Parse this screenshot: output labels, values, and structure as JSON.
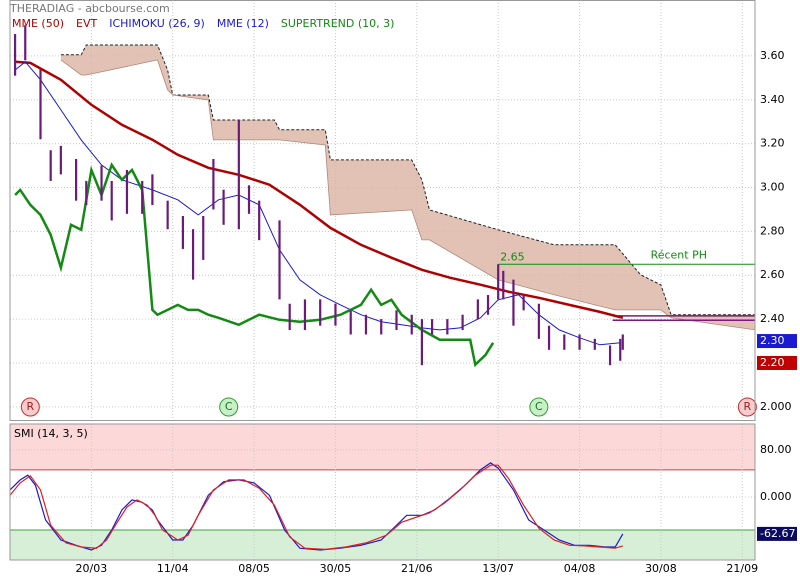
{
  "chart_data": {
    "type": "stock",
    "title": "THERADIAG - abcbourse.com",
    "xlim": [
      0,
      146.5
    ],
    "xticks": [
      {
        "value": 16,
        "label": "20/03"
      },
      {
        "value": 32,
        "label": "11/04"
      },
      {
        "value": 48,
        "label": "08/05"
      },
      {
        "value": 64,
        "label": "30/05"
      },
      {
        "value": 80,
        "label": "21/06"
      },
      {
        "value": 96,
        "label": "13/07"
      },
      {
        "value": 112,
        "label": "04/08"
      },
      {
        "value": 128,
        "label": "30/08"
      },
      {
        "value": 144,
        "label": "21/09"
      }
    ],
    "ylim": [
      1.94,
      3.855
    ],
    "yticks": [
      {
        "value": 3.6,
        "label": "3.60"
      },
      {
        "value": 3.4,
        "label": "3.40"
      },
      {
        "value": 3.2,
        "label": "3.20"
      },
      {
        "value": 3.0,
        "label": "3.00"
      },
      {
        "value": 2.8,
        "label": "2.80"
      },
      {
        "value": 2.6,
        "label": "2.60"
      },
      {
        "value": 2.4,
        "label": "2.40"
      },
      {
        "value": 2.2,
        "label": "2.20"
      },
      {
        "value": 2.0,
        "label": "2.000"
      }
    ],
    "grid": true,
    "legend": [
      "MME (50)",
      "EVT",
      "ICHIMOKU (26, 9)",
      "MME (12)",
      "SUPERTREND (10, 3)"
    ],
    "legend_colors": [
      "#b00000",
      "#b00000",
      "#1a1ad0",
      "#1a1ad0",
      "#138a13"
    ],
    "price": {
      "color": "#6a1b7a",
      "x": [
        1,
        3,
        6,
        8,
        10,
        13,
        15,
        18,
        20,
        23,
        26,
        28,
        31,
        34,
        36,
        38,
        40,
        42,
        45,
        47,
        49,
        53,
        55,
        58,
        61,
        64,
        67,
        70,
        73,
        76,
        79,
        81,
        83,
        86,
        89,
        92,
        94,
        96,
        97,
        99,
        101,
        104,
        106,
        109,
        112,
        115,
        118,
        120,
        120.5
      ],
      "high": [
        3.7,
        3.74,
        3.54,
        3.17,
        3.19,
        3.13,
        3.03,
        3.1,
        3.03,
        3.08,
        3.03,
        3.06,
        2.94,
        2.87,
        2.81,
        2.87,
        3.13,
        2.99,
        3.31,
        3.01,
        2.94,
        2.85,
        2.47,
        2.49,
        2.49,
        2.47,
        2.44,
        2.42,
        2.4,
        2.44,
        2.42,
        2.4,
        2.4,
        2.4,
        2.42,
        2.49,
        2.51,
        2.65,
        2.62,
        2.58,
        2.51,
        2.47,
        2.37,
        2.33,
        2.33,
        2.31,
        2.28,
        2.31,
        2.33
      ],
      "low": [
        3.51,
        3.58,
        3.22,
        3.03,
        3.06,
        2.94,
        2.92,
        2.94,
        2.85,
        2.88,
        2.88,
        2.92,
        2.81,
        2.72,
        2.58,
        2.67,
        2.9,
        2.83,
        2.81,
        2.88,
        2.76,
        2.49,
        2.35,
        2.35,
        2.37,
        2.37,
        2.33,
        2.33,
        2.33,
        2.35,
        2.33,
        2.19,
        2.33,
        2.33,
        2.35,
        2.4,
        2.42,
        2.49,
        2.49,
        2.37,
        2.44,
        2.31,
        2.26,
        2.26,
        2.26,
        2.26,
        2.19,
        2.21,
        2.26
      ]
    },
    "cloud": {
      "fill": "#d9b3a3",
      "x": [
        10,
        14,
        15,
        29,
        31,
        32,
        39,
        40,
        52,
        53,
        62,
        63,
        79,
        81,
        82.5,
        96,
        107,
        119,
        124,
        128,
        130,
        146.5
      ],
      "upper": [
        3.605,
        3.605,
        3.65,
        3.65,
        3.536,
        3.422,
        3.422,
        3.308,
        3.308,
        3.263,
        3.263,
        3.126,
        3.126,
        3.035,
        2.898,
        2.807,
        2.739,
        2.739,
        2.602,
        2.556,
        2.42,
        2.42
      ],
      "lower": [
        3.582,
        3.513,
        3.513,
        3.582,
        3.445,
        3.422,
        3.399,
        3.217,
        3.217,
        3.217,
        3.194,
        2.875,
        2.898,
        2.761,
        2.761,
        2.579,
        2.511,
        2.442,
        2.442,
        2.442,
        2.406,
        2.351
      ]
    },
    "series": [
      {
        "name": "MME (50)",
        "color": "#b00000",
        "width": 2.5,
        "x": [
          1,
          4,
          10,
          16,
          22,
          28,
          33,
          39,
          45,
          51,
          57,
          63,
          69,
          75,
          81,
          86.5,
          92.5,
          98,
          104,
          110,
          116,
          120.5
        ],
        "values": [
          3.573,
          3.568,
          3.491,
          3.377,
          3.286,
          3.218,
          3.149,
          3.09,
          3.058,
          3.013,
          2.921,
          2.816,
          2.739,
          2.68,
          2.625,
          2.589,
          2.557,
          2.525,
          2.497,
          2.465,
          2.433,
          2.406
        ]
      },
      {
        "name": "MME (12)",
        "color": "#1a1ad0",
        "width": 1,
        "x": [
          1,
          3,
          6,
          10,
          14,
          18,
          22,
          28,
          33,
          37,
          41,
          45,
          49,
          53,
          57,
          61,
          65,
          69,
          73,
          77,
          81,
          84.5,
          88.5,
          92.5,
          96,
          100,
          104,
          108,
          112,
          116,
          120
        ],
        "values": [
          3.536,
          3.573,
          3.491,
          3.354,
          3.217,
          3.103,
          3.035,
          2.989,
          2.944,
          2.875,
          2.944,
          2.966,
          2.921,
          2.716,
          2.579,
          2.511,
          2.465,
          2.42,
          2.388,
          2.374,
          2.36,
          2.351,
          2.36,
          2.406,
          2.488,
          2.511,
          2.42,
          2.351,
          2.315,
          2.283,
          2.292
        ]
      },
      {
        "name": "SUPERTREND (10, 3)",
        "color": "#138a13",
        "width": 2.5,
        "x": [
          1,
          2,
          4,
          6,
          8,
          10,
          12,
          14,
          16,
          18,
          20,
          22,
          24,
          26,
          28,
          29,
          31,
          33,
          35,
          37,
          39,
          41,
          45,
          49,
          53,
          57,
          61,
          65,
          69,
          71,
          73,
          75,
          77,
          81,
          84.5,
          88.5,
          90.5,
          91.5,
          93.5,
          95
        ],
        "values": [
          2.966,
          2.989,
          2.921,
          2.875,
          2.784,
          2.634,
          2.83,
          2.807,
          3.08,
          2.966,
          3.103,
          3.035,
          3.08,
          2.989,
          2.442,
          2.42,
          2.442,
          2.465,
          2.442,
          2.442,
          2.42,
          2.406,
          2.374,
          2.42,
          2.397,
          2.388,
          2.397,
          2.42,
          2.465,
          2.534,
          2.465,
          2.488,
          2.42,
          2.351,
          2.306,
          2.306,
          2.306,
          2.192,
          2.237,
          2.292
        ]
      }
    ],
    "resistance": {
      "value": 2.65,
      "label": "2.65",
      "name": "Récent PH",
      "x_start": 96,
      "color": "#138a13"
    },
    "levels": {
      "values": [
        2.415,
        2.395
      ],
      "x_start": 118.5,
      "color": "#7a1a7a"
    },
    "last_labels": [
      {
        "value": 2.3,
        "label": "2.30",
        "color": "#1a1ad0"
      },
      {
        "value": 2.2,
        "label": "2.20",
        "color": "#c00000"
      }
    ],
    "events": [
      {
        "x": 4,
        "label": "R"
      },
      {
        "x": 43,
        "label": "C"
      },
      {
        "x": 104,
        "label": "C"
      },
      {
        "x": 145,
        "label": "R"
      }
    ],
    "smi": {
      "title": "SMI (14, 3, 5)",
      "ylim": [
        -107,
        124
      ],
      "yticks": [
        {
          "value": 80,
          "label": "80.00"
        },
        {
          "value": 0,
          "label": "0.000"
        }
      ],
      "upper_level": 46,
      "lower_level": -56,
      "last_label": {
        "value": -62.67,
        "label": "-62.67"
      },
      "series": [
        {
          "color": "#1a1ad0",
          "x": [
            0,
            2,
            3.5,
            5,
            7,
            10,
            13,
            16,
            18,
            20,
            22,
            24,
            26,
            28,
            29,
            32,
            34,
            36,
            39,
            42,
            45,
            48,
            51,
            54,
            57,
            61,
            65,
            69,
            73,
            76,
            78,
            81,
            83.5,
            86.5,
            89.5,
            92.5,
            94.5,
            96,
            99,
            102,
            105,
            108,
            111,
            114,
            117,
            119,
            120.5
          ],
          "values": [
            12,
            29,
            37,
            20,
            -39,
            -73,
            -82,
            -90,
            -82,
            -56,
            -22,
            -5,
            -9,
            -22,
            -39,
            -73,
            -73,
            -48,
            3,
            26,
            29,
            24,
            3,
            -56,
            -87,
            -90,
            -87,
            -82,
            -73,
            -48,
            -31,
            -31,
            -22,
            -2,
            20,
            46,
            58,
            49,
            12,
            -39,
            -56,
            -73,
            -82,
            -82,
            -85,
            -85,
            -62.67
          ]
        },
        {
          "color": "#e02020",
          "x": [
            0,
            2,
            4,
            6,
            8,
            11,
            14,
            17,
            19,
            21,
            23,
            25,
            27,
            28.5,
            30,
            33,
            35,
            37,
            40,
            43,
            46,
            49,
            52,
            55,
            58,
            62,
            66,
            70,
            74,
            77,
            80,
            82.5,
            85.5,
            88.5,
            91.5,
            94.5,
            96,
            98,
            101,
            104,
            107,
            110,
            113,
            116,
            119,
            120.5
          ],
          "values": [
            3,
            24,
            36,
            12,
            -48,
            -78,
            -85,
            -87,
            -73,
            -44,
            -17,
            -5,
            -14,
            -31,
            -56,
            -73,
            -65,
            -31,
            12,
            29,
            29,
            15,
            -14,
            -68,
            -87,
            -89,
            -85,
            -78,
            -65,
            -43,
            -34,
            -27,
            -10,
            12,
            37,
            54,
            54,
            32,
            -14,
            -53,
            -73,
            -82,
            -83,
            -85,
            -87,
            -83
          ]
        }
      ]
    }
  }
}
